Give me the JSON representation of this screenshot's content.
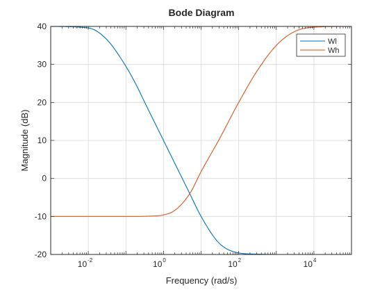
{
  "chart_data": {
    "type": "line",
    "title": "Bode Diagram",
    "xlabel": "Frequency (rad/s)",
    "ylabel": "Magnitude (dB)",
    "x_scale": "log",
    "xlim": [
      0.001,
      100000
    ],
    "ylim": [
      -20,
      40
    ],
    "x_ticks": [
      {
        "value": 0.01,
        "base": "10",
        "exp": "-2"
      },
      {
        "value": 1,
        "base": "10",
        "exp": "0"
      },
      {
        "value": 100,
        "base": "10",
        "exp": "2"
      },
      {
        "value": 10000,
        "base": "10",
        "exp": "4"
      }
    ],
    "y_ticks": [
      {
        "value": -20,
        "label": "-20"
      },
      {
        "value": -10,
        "label": "-10"
      },
      {
        "value": 0,
        "label": "0"
      },
      {
        "value": 10,
        "label": "10"
      },
      {
        "value": 20,
        "label": "20"
      },
      {
        "value": 30,
        "label": "30"
      },
      {
        "value": 40,
        "label": "40"
      }
    ],
    "grid": true,
    "legend_position": "top-right",
    "series": [
      {
        "name": "Wl",
        "color": "#0072BD",
        "x": [
          0.001,
          0.01,
          0.03,
          0.1,
          0.2,
          0.3,
          1,
          5,
          10,
          30,
          100,
          300,
          1000,
          10000,
          100000
        ],
        "y": [
          40,
          39.6,
          36.7,
          29.5,
          24.1,
          20.5,
          10,
          -4,
          -10,
          -17,
          -19.6,
          -19.9,
          -20,
          -20,
          -20
        ]
      },
      {
        "name": "Wh",
        "color": "#D95319",
        "x": [
          0.001,
          0.1,
          0.5,
          1,
          2,
          5,
          10,
          30,
          100,
          300,
          1000,
          3000,
          10000,
          100000
        ],
        "y": [
          -10,
          -10,
          -9.9,
          -9.6,
          -8.4,
          -4,
          1.8,
          10.2,
          20,
          28.1,
          35,
          38.6,
          39.8,
          40
        ]
      }
    ]
  }
}
